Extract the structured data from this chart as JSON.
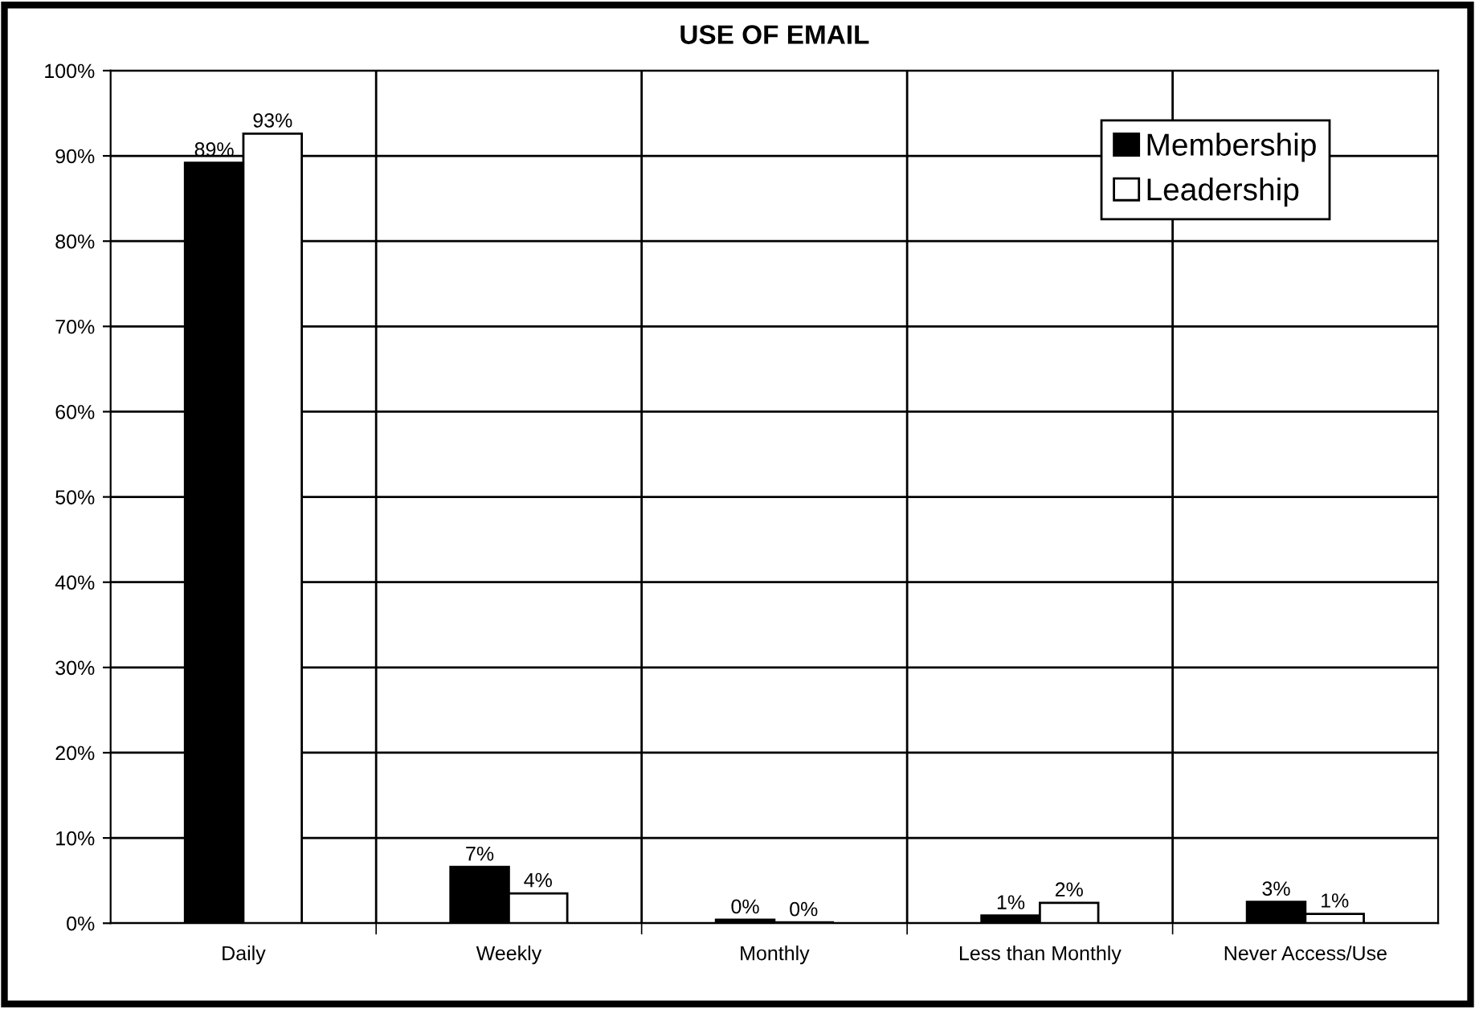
{
  "chart_data": {
    "type": "bar",
    "title": "USE OF EMAIL",
    "categories": [
      "Daily",
      "Weekly",
      "Monthly",
      "Less than Monthly",
      "Never Access/Use"
    ],
    "series": [
      {
        "name": "Membership",
        "color": "#000000",
        "values": [
          89.2,
          6.6,
          0.4,
          0.9,
          2.5
        ],
        "value_labels": [
          "89%",
          "7%",
          "0%",
          "1%",
          "3%"
        ]
      },
      {
        "name": "Leadership",
        "color": "#ffffff",
        "values": [
          92.6,
          3.5,
          0.1,
          2.4,
          1.1
        ],
        "value_labels": [
          "93%",
          "4%",
          "0%",
          "2%",
          "1%"
        ]
      }
    ],
    "ylim": [
      0,
      100
    ],
    "yticks": [
      {
        "value": 0,
        "label": "0%"
      },
      {
        "value": 10,
        "label": "10%"
      },
      {
        "value": 20,
        "label": "20%"
      },
      {
        "value": 30,
        "label": "30%"
      },
      {
        "value": 40,
        "label": "40%"
      },
      {
        "value": 50,
        "label": "50%"
      },
      {
        "value": 60,
        "label": "60%"
      },
      {
        "value": 70,
        "label": "70%"
      },
      {
        "value": 80,
        "label": "80%"
      },
      {
        "value": 90,
        "label": "90%"
      },
      {
        "value": 100,
        "label": "100%"
      }
    ],
    "grid": true,
    "legend": "top right"
  }
}
